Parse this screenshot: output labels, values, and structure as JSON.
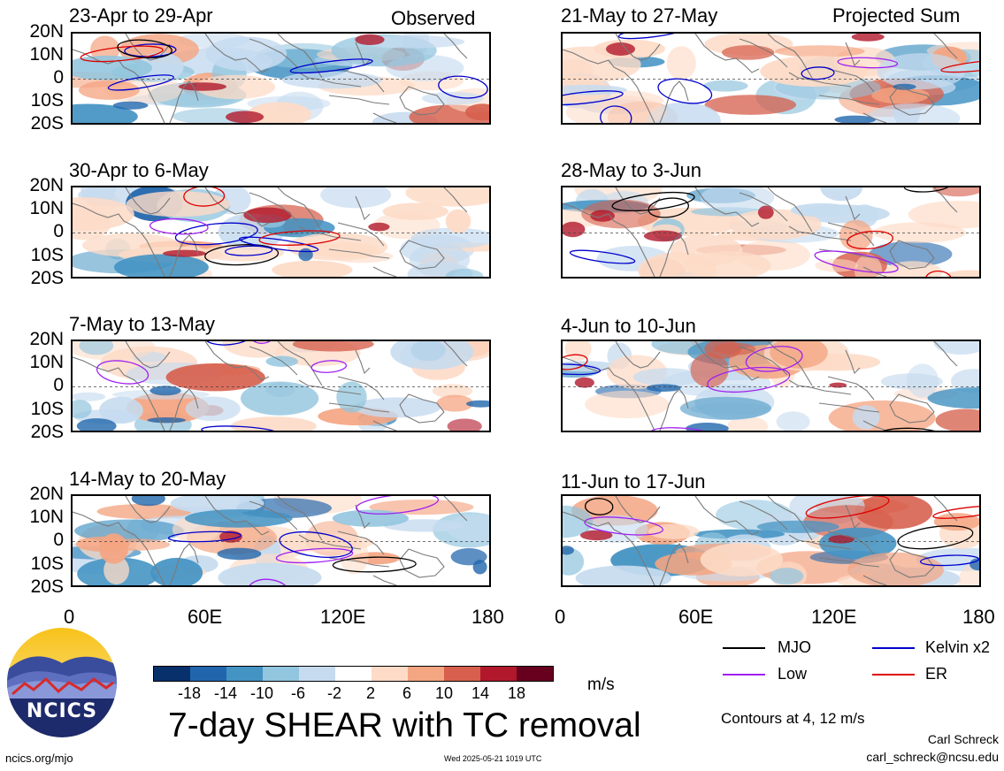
{
  "panels": [
    {
      "title": "23-Apr to 29-Apr",
      "tag": "Observed"
    },
    {
      "title": "30-Apr to 6-May",
      "tag": ""
    },
    {
      "title": "7-May to 13-May",
      "tag": ""
    },
    {
      "title": "14-May to 20-May",
      "tag": ""
    },
    {
      "title": "21-May to 27-May",
      "tag": "Projected Sum"
    },
    {
      "title": "28-May to 3-Jun",
      "tag": ""
    },
    {
      "title": "4-Jun to 10-Jun",
      "tag": ""
    },
    {
      "title": "11-Jun to 17-Jun",
      "tag": ""
    }
  ],
  "lat_labels": [
    "20N",
    "10N",
    "0",
    "10S",
    "20S"
  ],
  "lon_labels": [
    "0",
    "60E",
    "120E",
    "180"
  ],
  "colorbar": {
    "labels": [
      "-18",
      "-14",
      "-10",
      "-6",
      "-2",
      "2",
      "6",
      "10",
      "14",
      "18"
    ],
    "colors": [
      "#08306b",
      "#2166ac",
      "#4393c3",
      "#92c5de",
      "#c6dbef",
      "#ffffff",
      "#fddbc7",
      "#f4a582",
      "#d6604d",
      "#b2182b",
      "#67001f"
    ],
    "units": "m/s"
  },
  "title": "7-day SHEAR with TC removal",
  "legend": [
    {
      "label": "MJO",
      "color": "#000000"
    },
    {
      "label": "Kelvin x2",
      "color": "#0000cc"
    },
    {
      "label": "Low",
      "color": "#a020f0"
    },
    {
      "label": "ER",
      "color": "#dd0000"
    }
  ],
  "contour_note": "Contours at 4, 12 m/s",
  "author": "Carl Schreck",
  "email": "carl_schreck@ncsu.edu",
  "site": "ncics.org/mjo",
  "timestamp": "Wed 2025-05-21 1019 UTC",
  "logo_text": "NCICS"
}
